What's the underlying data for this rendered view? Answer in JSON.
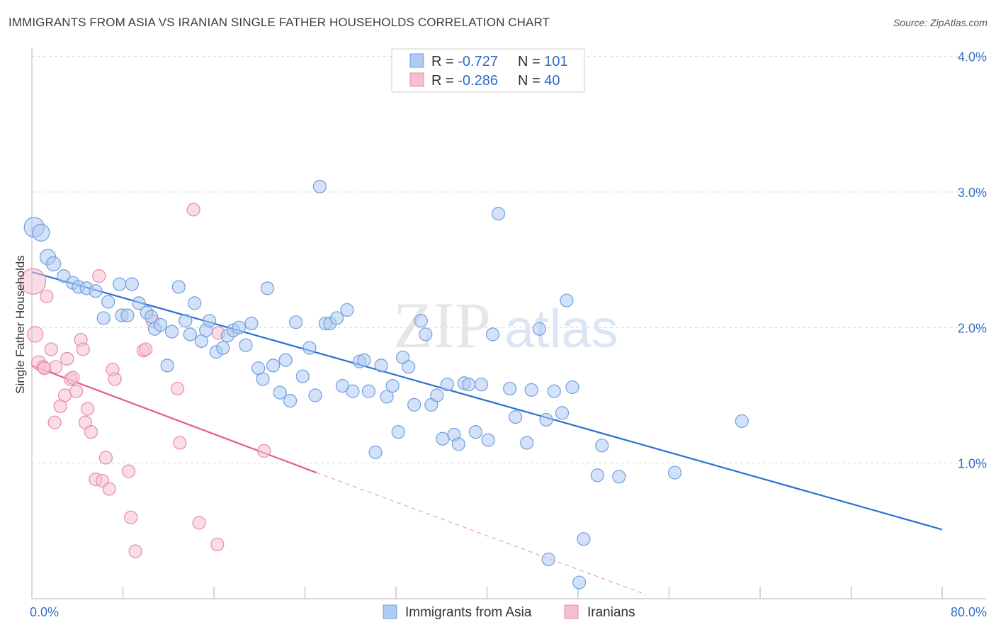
{
  "title": "IMMIGRANTS FROM ASIA VS IRANIAN SINGLE FATHER HOUSEHOLDS CORRELATION CHART",
  "source": "Source: ZipAtlas.com",
  "watermark": {
    "zip": "ZIP",
    "atlas": "atlas"
  },
  "colors": {
    "blue_fill": "#aecbf2",
    "blue_stroke": "#6f9fdc",
    "blue_line": "#2c6fd1",
    "pink_fill": "#f6bfcf",
    "pink_stroke": "#e88aa8",
    "pink_line": "#e0608a",
    "grid": "#d9d9d9",
    "tick_text": "#3a70c4"
  },
  "legend": {
    "rows": [
      {
        "r_label": "R = ",
        "r_value": "-0.727",
        "n_label": "N = ",
        "n_value": "101"
      },
      {
        "r_label": "R = ",
        "r_value": "-0.286",
        "n_label": "N = ",
        "n_value": "40"
      }
    ]
  },
  "bottom_legend": [
    "Immigrants from Asia",
    "Iranians"
  ],
  "chart_data": {
    "type": "scatter",
    "title": "IMMIGRANTS FROM ASIA VS IRANIAN SINGLE FATHER HOUSEHOLDS CORRELATION CHART",
    "xlabel": "",
    "ylabel": "Single Father Households",
    "xlim": [
      0,
      80
    ],
    "ylim": [
      0,
      4.1
    ],
    "x_tick_labels": [
      "0.0%",
      "80.0%"
    ],
    "y_ticks": [
      1.0,
      2.0,
      3.0,
      4.0
    ],
    "y_tick_labels": [
      "1.0%",
      "2.0%",
      "3.0%",
      "4.0%"
    ],
    "series": [
      {
        "name": "Immigrants from Asia",
        "R": -0.727,
        "N": 101,
        "trend": {
          "x0": 0,
          "y0": 2.41,
          "x1": 80,
          "y1": 0.51
        },
        "points": [
          [
            0.2,
            2.74,
            14
          ],
          [
            0.8,
            2.7,
            12
          ],
          [
            1.4,
            2.52,
            11
          ],
          [
            1.9,
            2.47,
            10
          ],
          [
            2.8,
            2.38,
            9
          ],
          [
            3.6,
            2.33,
            9
          ],
          [
            4.1,
            2.3,
            9
          ],
          [
            4.8,
            2.29,
            9
          ],
          [
            5.6,
            2.27,
            9
          ],
          [
            6.3,
            2.07,
            9
          ],
          [
            6.7,
            2.19,
            9
          ],
          [
            7.9,
            2.09,
            9
          ],
          [
            7.7,
            2.32,
            9
          ],
          [
            8.4,
            2.09,
            9
          ],
          [
            8.8,
            2.32,
            9
          ],
          [
            9.4,
            2.18,
            9
          ],
          [
            10.1,
            2.11,
            9
          ],
          [
            10.5,
            2.08,
            9
          ],
          [
            10.8,
            1.99,
            9
          ],
          [
            11.3,
            2.02,
            9
          ],
          [
            11.9,
            1.72,
            9
          ],
          [
            12.3,
            1.97,
            9
          ],
          [
            12.9,
            2.3,
            9
          ],
          [
            13.5,
            2.05,
            9
          ],
          [
            13.9,
            1.95,
            9
          ],
          [
            14.3,
            2.18,
            9
          ],
          [
            14.9,
            1.9,
            9
          ],
          [
            15.3,
            1.98,
            9
          ],
          [
            15.6,
            2.05,
            9
          ],
          [
            16.2,
            1.82,
            9
          ],
          [
            16.8,
            1.85,
            9
          ],
          [
            17.2,
            1.94,
            9
          ],
          [
            17.7,
            1.98,
            9
          ],
          [
            18.2,
            2.0,
            9
          ],
          [
            18.8,
            1.87,
            9
          ],
          [
            19.3,
            2.03,
            9
          ],
          [
            19.9,
            1.7,
            9
          ],
          [
            20.3,
            1.62,
            9
          ],
          [
            20.7,
            2.29,
            9
          ],
          [
            21.2,
            1.72,
            9
          ],
          [
            21.8,
            1.52,
            9
          ],
          [
            22.3,
            1.76,
            9
          ],
          [
            22.7,
            1.46,
            9
          ],
          [
            23.2,
            2.04,
            9
          ],
          [
            23.8,
            1.64,
            9
          ],
          [
            24.4,
            1.85,
            9
          ],
          [
            24.9,
            1.5,
            9
          ],
          [
            25.3,
            3.04,
            9
          ],
          [
            25.8,
            2.03,
            9
          ],
          [
            26.2,
            2.03,
            9
          ],
          [
            26.8,
            2.07,
            9
          ],
          [
            27.3,
            1.57,
            9
          ],
          [
            27.7,
            2.13,
            9
          ],
          [
            28.2,
            1.53,
            9
          ],
          [
            28.8,
            1.75,
            9
          ],
          [
            29.2,
            1.76,
            9
          ],
          [
            29.6,
            1.53,
            9
          ],
          [
            30.2,
            1.08,
            9
          ],
          [
            30.7,
            1.72,
            9
          ],
          [
            31.2,
            1.49,
            9
          ],
          [
            31.7,
            1.57,
            9
          ],
          [
            32.2,
            1.23,
            9
          ],
          [
            32.6,
            1.78,
            9
          ],
          [
            33.1,
            1.71,
            9
          ],
          [
            33.6,
            1.43,
            9
          ],
          [
            34.2,
            2.05,
            9
          ],
          [
            34.6,
            1.95,
            9
          ],
          [
            35.1,
            1.43,
            9
          ],
          [
            35.6,
            1.5,
            9
          ],
          [
            36.1,
            1.18,
            9
          ],
          [
            36.5,
            1.58,
            9
          ],
          [
            37.1,
            1.21,
            9
          ],
          [
            37.5,
            1.14,
            9
          ],
          [
            38.0,
            1.59,
            9
          ],
          [
            38.4,
            1.58,
            9
          ],
          [
            39.0,
            1.23,
            9
          ],
          [
            39.5,
            1.58,
            9
          ],
          [
            40.1,
            1.17,
            9
          ],
          [
            40.5,
            1.95,
            9
          ],
          [
            41.0,
            2.84,
            9
          ],
          [
            42.0,
            1.55,
            9
          ],
          [
            42.5,
            1.34,
            9
          ],
          [
            43.5,
            1.15,
            9
          ],
          [
            43.9,
            1.54,
            9
          ],
          [
            44.6,
            1.99,
            9
          ],
          [
            45.2,
            1.32,
            9
          ],
          [
            45.9,
            1.53,
            9
          ],
          [
            46.6,
            1.37,
            9
          ],
          [
            47.0,
            2.2,
            9
          ],
          [
            47.5,
            1.56,
            9
          ],
          [
            48.5,
            0.44,
            9
          ],
          [
            49.7,
            0.91,
            9
          ],
          [
            50.1,
            1.13,
            9
          ],
          [
            51.6,
            0.9,
            9
          ],
          [
            56.5,
            0.93,
            9
          ],
          [
            62.4,
            1.31,
            9
          ],
          [
            45.4,
            0.29,
            9
          ],
          [
            48.1,
            0.12,
            9
          ]
        ]
      },
      {
        "name": "Iranians",
        "R": -0.286,
        "N": 40,
        "trend": {
          "x0": 0,
          "y0": 1.72,
          "x1": 25,
          "y1": 0.93,
          "dashed_to_x": 54,
          "dashed_to_y": 0.03
        },
        "points": [
          [
            0.1,
            2.34,
            18
          ],
          [
            0.3,
            1.95,
            11
          ],
          [
            0.6,
            1.74,
            10
          ],
          [
            1.0,
            1.71,
            9
          ],
          [
            1.3,
            2.23,
            9
          ],
          [
            1.7,
            1.84,
            9
          ],
          [
            2.1,
            1.71,
            9
          ],
          [
            2.5,
            1.42,
            9
          ],
          [
            2.9,
            1.5,
            9
          ],
          [
            3.1,
            1.77,
            9
          ],
          [
            3.4,
            1.62,
            9
          ],
          [
            3.6,
            1.63,
            9
          ],
          [
            3.9,
            1.53,
            9
          ],
          [
            4.3,
            1.91,
            9
          ],
          [
            4.5,
            1.84,
            9
          ],
          [
            4.7,
            1.3,
            9
          ],
          [
            4.9,
            1.4,
            9
          ],
          [
            5.2,
            1.23,
            9
          ],
          [
            5.6,
            0.88,
            9
          ],
          [
            5.9,
            2.38,
            9
          ],
          [
            6.2,
            0.87,
            9
          ],
          [
            6.5,
            1.04,
            9
          ],
          [
            6.8,
            0.81,
            9
          ],
          [
            7.1,
            1.69,
            9
          ],
          [
            7.3,
            1.62,
            9
          ],
          [
            2.0,
            1.3,
            9
          ],
          [
            8.5,
            0.94,
            9
          ],
          [
            8.7,
            0.6,
            9
          ],
          [
            9.1,
            0.35,
            9
          ],
          [
            9.8,
            1.83,
            9
          ],
          [
            10.0,
            1.84,
            9
          ],
          [
            10.6,
            2.05,
            9
          ],
          [
            12.8,
            1.55,
            9
          ],
          [
            13.0,
            1.15,
            9
          ],
          [
            14.2,
            2.87,
            9
          ],
          [
            14.7,
            0.56,
            9
          ],
          [
            16.3,
            0.4,
            9
          ],
          [
            16.4,
            1.96,
            9
          ],
          [
            20.4,
            1.09,
            9
          ],
          [
            1.1,
            1.7,
            9
          ]
        ]
      }
    ]
  }
}
